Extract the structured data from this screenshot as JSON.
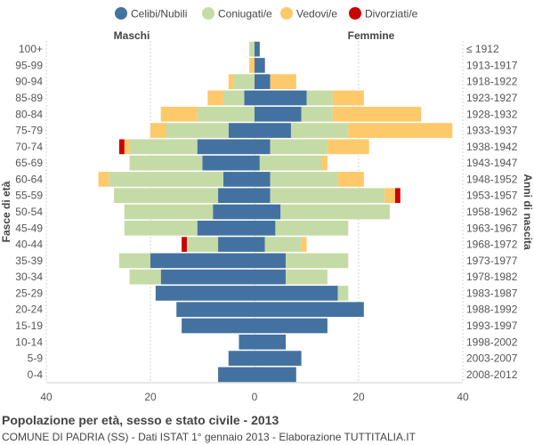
{
  "chart_data": {
    "type": "population-pyramid",
    "title": "Popolazione per età, sesso e stato civile - 2013",
    "subtitle": "COMUNE DI PADRIA (SS) - Dati ISTAT 1° gennaio 2013 - Elaborazione TUTTITALIA.IT",
    "left_label": "Maschi",
    "right_label": "Femmine",
    "y_left_title": "Fasce di età",
    "y_right_title": "Anni di nascita",
    "xlim": [
      -40,
      40
    ],
    "x_ticks": [
      -40,
      -20,
      0,
      20,
      40
    ],
    "x_tick_labels": [
      "40",
      "20",
      "0",
      "20",
      "40"
    ],
    "legend": [
      {
        "key": "celibi",
        "label": "Celibi/Nubili",
        "color": "#4472a0"
      },
      {
        "key": "coniugati",
        "label": "Coniugati/e",
        "color": "#c5dba5"
      },
      {
        "key": "vedovi",
        "label": "Vedovi/e",
        "color": "#fdc96a"
      },
      {
        "key": "divorziati",
        "label": "Divorziati/e",
        "color": "#cc0000"
      }
    ],
    "age_groups": [
      "100+",
      "95-99",
      "90-94",
      "85-89",
      "80-84",
      "75-79",
      "70-74",
      "65-69",
      "60-64",
      "55-59",
      "50-54",
      "45-49",
      "40-44",
      "35-39",
      "30-34",
      "25-29",
      "20-24",
      "15-19",
      "10-14",
      "5-9",
      "0-4"
    ],
    "birth_years": [
      "≤ 1912",
      "1913-1917",
      "1918-1922",
      "1923-1927",
      "1928-1932",
      "1933-1937",
      "1938-1942",
      "1943-1947",
      "1948-1952",
      "1953-1957",
      "1958-1962",
      "1963-1967",
      "1968-1972",
      "1973-1977",
      "1978-1982",
      "1983-1987",
      "1988-1992",
      "1993-1997",
      "1998-2002",
      "2003-2007",
      "2008-2012"
    ],
    "males": {
      "celibi": [
        0,
        0,
        0,
        2,
        0,
        5,
        11,
        10,
        6,
        7,
        8,
        11,
        7,
        20,
        18,
        19,
        15,
        14,
        3,
        5,
        7
      ],
      "coniugati": [
        1,
        0,
        4,
        4,
        11,
        12,
        13,
        14,
        22,
        20,
        17,
        14,
        6,
        6,
        6,
        0,
        0,
        0,
        0,
        0,
        0
      ],
      "vedovi": [
        0,
        1,
        1,
        3,
        7,
        3,
        1,
        0,
        2,
        0,
        0,
        0,
        0,
        0,
        0,
        0,
        0,
        0,
        0,
        0,
        0
      ],
      "divorziati": [
        0,
        0,
        0,
        0,
        0,
        0,
        1,
        0,
        0,
        0,
        0,
        0,
        1,
        0,
        0,
        0,
        0,
        0,
        0,
        0,
        0
      ]
    },
    "females": {
      "celibi": [
        1,
        2,
        3,
        10,
        9,
        7,
        3,
        1,
        3,
        3,
        5,
        4,
        2,
        6,
        6,
        16,
        21,
        14,
        6,
        9,
        8
      ],
      "coniugati": [
        0,
        0,
        0,
        5,
        6,
        11,
        11,
        12,
        13,
        22,
        21,
        14,
        7,
        12,
        8,
        2,
        0,
        0,
        0,
        0,
        0
      ],
      "vedovi": [
        0,
        0,
        5,
        6,
        17,
        20,
        8,
        1,
        5,
        2,
        0,
        0,
        1,
        0,
        0,
        0,
        0,
        0,
        0,
        0,
        0
      ],
      "divorziati": [
        0,
        0,
        0,
        0,
        0,
        0,
        0,
        0,
        0,
        1,
        0,
        0,
        0,
        0,
        0,
        0,
        0,
        0,
        0,
        0,
        0
      ]
    }
  }
}
